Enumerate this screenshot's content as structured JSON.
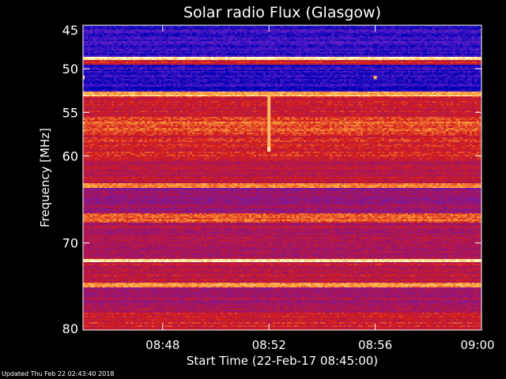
{
  "chart_data": {
    "type": "heatmap",
    "title": "Solar radio Flux (Glasgow)",
    "xlabel": "Start Time (22-Feb-17 08:45:00)",
    "ylabel": "Frequency [MHz]",
    "x_start": "08:45:00",
    "x_end": "09:00:00",
    "x_ticks": [
      {
        "label": "08:48",
        "minutes": 3
      },
      {
        "label": "08:52",
        "minutes": 7
      },
      {
        "label": "08:56",
        "minutes": 11
      },
      {
        "label": "09:00",
        "minutes": 15
      }
    ],
    "x_range_minutes": [
      0,
      15
    ],
    "y_ticks": [
      45,
      50,
      55,
      60,
      70,
      80
    ],
    "ylim": [
      45,
      80
    ],
    "color_scale": [
      "#0000b4",
      "#5a1ec8",
      "#a01464",
      "#d21e1e",
      "#ffa03c",
      "#ffffc8"
    ],
    "background_level": 0.45,
    "bands": [
      {
        "from": 45.0,
        "to": 45.5,
        "level": 0.05
      },
      {
        "from": 45.5,
        "to": 48.5,
        "level": 0.12
      },
      {
        "from": 48.5,
        "to": 48.9,
        "level": 0.98
      },
      {
        "from": 48.9,
        "to": 49.5,
        "level": 0.55
      },
      {
        "from": 49.5,
        "to": 51.5,
        "level": 0.1
      },
      {
        "from": 51.5,
        "to": 52.5,
        "level": 0.08
      },
      {
        "from": 52.5,
        "to": 53.0,
        "level": 0.82
      },
      {
        "from": 53.0,
        "to": 55.5,
        "level": 0.55
      },
      {
        "from": 55.5,
        "to": 57.5,
        "level": 0.68
      },
      {
        "from": 57.5,
        "to": 60.5,
        "level": 0.58
      },
      {
        "from": 60.5,
        "to": 63.0,
        "level": 0.5
      },
      {
        "from": 63.0,
        "to": 63.5,
        "level": 0.78
      },
      {
        "from": 63.5,
        "to": 66.5,
        "level": 0.38
      },
      {
        "from": 66.5,
        "to": 67.5,
        "level": 0.68
      },
      {
        "from": 67.5,
        "to": 71.8,
        "level": 0.44
      },
      {
        "from": 71.8,
        "to": 72.2,
        "level": 0.95
      },
      {
        "from": 72.2,
        "to": 74.5,
        "level": 0.52
      },
      {
        "from": 74.5,
        "to": 75.0,
        "level": 0.8
      },
      {
        "from": 75.0,
        "to": 78.0,
        "level": 0.42
      },
      {
        "from": 78.0,
        "to": 80.0,
        "level": 0.58
      }
    ],
    "bursts": [
      {
        "minutes": 7.0,
        "freq_from": 53.0,
        "freq_to": 59.5,
        "level": 0.85
      },
      {
        "minutes": 7.0,
        "freq_from": 59.0,
        "freq_to": 59.5,
        "level": 0.95
      },
      {
        "minutes": 0.0,
        "freq_from": 50.8,
        "freq_to": 51.2,
        "level": 0.9
      },
      {
        "minutes": 11.0,
        "freq_from": 50.8,
        "freq_to": 51.2,
        "level": 0.85
      }
    ]
  },
  "footer": {
    "updated_text": "Updated Thu Feb 22 02:43:40 2018"
  }
}
